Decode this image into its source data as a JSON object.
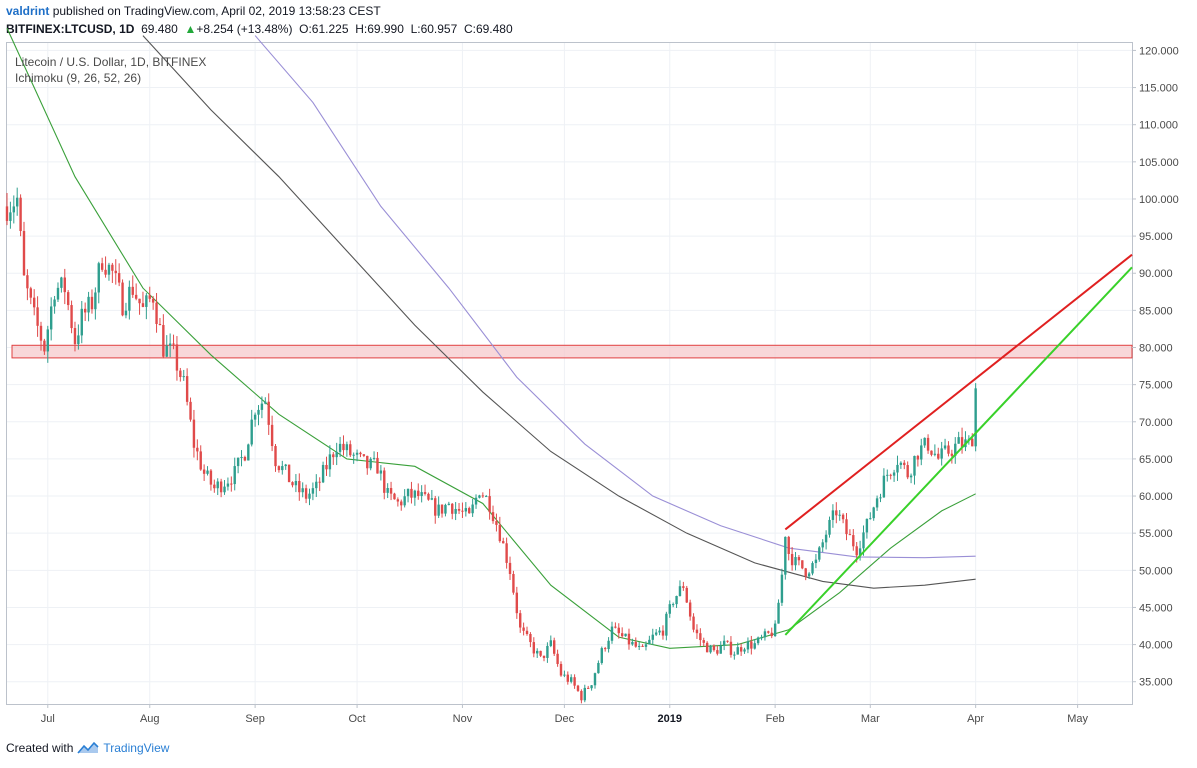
{
  "header": {
    "user": "valdrint",
    "published": "published on TradingView.com, April 02, 2019 13:58:23 CEST",
    "symbol": "BITFINEX:LTCUSD, 1D",
    "last": "69.480",
    "change": "+8.254 (+13.48%)",
    "ohlc_o": "O:61.225",
    "ohlc_h": "H:69.990",
    "ohlc_l": "L:60.957",
    "ohlc_c": "C:69.480"
  },
  "legend": {
    "title": "Litecoin / U.S. Dollar, 1D, BITFINEX",
    "indicator": "Ichimoku (9, 26, 52, 26)"
  },
  "footer": {
    "created_with": "Created with",
    "brand": "TradingView"
  },
  "colors": {
    "up": "#2e9e8e",
    "down": "#e04a4a",
    "ma_green": "#3aa03a",
    "ma_dark": "#555555",
    "ma_purple": "#9a8fd6",
    "zone_fill": "#f6c9cc",
    "zone_stroke": "#e04040",
    "channel_top": "#e02020",
    "channel_bottom": "#39d12a"
  },
  "chart_data": {
    "type": "candlestick",
    "y_axis": {
      "min": 32,
      "max": 121,
      "ticks": [
        35,
        40,
        45,
        50,
        55,
        60,
        65,
        70,
        75,
        80,
        85,
        90,
        95,
        100,
        105,
        110,
        115,
        120
      ],
      "tick_labels": [
        "35.000",
        "40.000",
        "45.000",
        "50.000",
        "55.000",
        "60.000",
        "65.000",
        "70.000",
        "75.000",
        "80.000",
        "85.000",
        "90.000",
        "95.000",
        "100.000",
        "105.000",
        "110.000",
        "115.000",
        "120.000"
      ]
    },
    "x_axis": {
      "start_day": 0,
      "end_day": 331,
      "labels": [
        "Jul",
        "Aug",
        "Sep",
        "Oct",
        "Nov",
        "Dec",
        "2019",
        "Feb",
        "Mar",
        "Apr",
        "May"
      ],
      "label_days": [
        12,
        42,
        73,
        103,
        134,
        164,
        195,
        226,
        254,
        285,
        315
      ]
    },
    "price_path": [
      [
        0,
        99
      ],
      [
        3,
        100
      ],
      [
        5,
        89
      ],
      [
        8,
        84
      ],
      [
        11,
        80
      ],
      [
        14,
        88
      ],
      [
        17,
        88
      ],
      [
        20,
        81
      ],
      [
        22,
        84
      ],
      [
        25,
        86
      ],
      [
        28,
        92
      ],
      [
        31,
        90
      ],
      [
        34,
        86
      ],
      [
        37,
        88
      ],
      [
        40,
        85
      ],
      [
        43,
        87
      ],
      [
        46,
        80
      ],
      [
        49,
        79
      ],
      [
        52,
        75
      ],
      [
        55,
        67
      ],
      [
        58,
        63
      ],
      [
        61,
        61
      ],
      [
        64,
        62
      ],
      [
        67,
        63
      ],
      [
        70,
        66
      ],
      [
        73,
        72
      ],
      [
        76,
        73
      ],
      [
        79,
        65
      ],
      [
        82,
        63
      ],
      [
        85,
        61
      ],
      [
        88,
        60
      ],
      [
        91,
        61
      ],
      [
        94,
        64
      ],
      [
        97,
        67
      ],
      [
        100,
        66
      ],
      [
        103,
        65
      ],
      [
        106,
        64
      ],
      [
        109,
        64
      ],
      [
        112,
        60
      ],
      [
        115,
        59
      ],
      [
        118,
        60
      ],
      [
        121,
        60
      ],
      [
        124,
        59
      ],
      [
        127,
        58
      ],
      [
        130,
        59
      ],
      [
        133,
        58
      ],
      [
        136,
        57
      ],
      [
        139,
        61
      ],
      [
        142,
        59
      ],
      [
        145,
        55
      ],
      [
        148,
        50
      ],
      [
        151,
        42
      ],
      [
        154,
        40
      ],
      [
        157,
        38
      ],
      [
        160,
        40
      ],
      [
        163,
        36
      ],
      [
        166,
        35
      ],
      [
        169,
        33
      ],
      [
        172,
        35
      ],
      [
        175,
        39
      ],
      [
        178,
        42
      ],
      [
        181,
        41
      ],
      [
        184,
        40
      ],
      [
        187,
        39
      ],
      [
        190,
        41
      ],
      [
        193,
        42
      ],
      [
        196,
        46
      ],
      [
        199,
        48
      ],
      [
        202,
        42
      ],
      [
        205,
        40
      ],
      [
        208,
        39
      ],
      [
        211,
        40
      ],
      [
        214,
        39
      ],
      [
        217,
        40
      ],
      [
        220,
        40
      ],
      [
        223,
        41
      ],
      [
        226,
        42
      ],
      [
        229,
        53
      ],
      [
        232,
        51
      ],
      [
        235,
        50
      ],
      [
        238,
        51
      ],
      [
        241,
        55
      ],
      [
        244,
        58
      ],
      [
        247,
        55
      ],
      [
        250,
        53
      ],
      [
        253,
        56
      ],
      [
        256,
        60
      ],
      [
        259,
        63
      ],
      [
        262,
        65
      ],
      [
        265,
        63
      ],
      [
        268,
        66
      ],
      [
        271,
        67
      ],
      [
        274,
        65
      ],
      [
        277,
        66
      ],
      [
        280,
        67
      ],
      [
        283,
        67
      ],
      [
        285,
        69
      ]
    ],
    "ma_green": [
      [
        0,
        123
      ],
      [
        20,
        103
      ],
      [
        40,
        88
      ],
      [
        60,
        79
      ],
      [
        80,
        71
      ],
      [
        100,
        65
      ],
      [
        120,
        64
      ],
      [
        140,
        59
      ],
      [
        160,
        48
      ],
      [
        180,
        41
      ],
      [
        195,
        39.5
      ],
      [
        215,
        40
      ],
      [
        230,
        42
      ],
      [
        245,
        47
      ],
      [
        260,
        53
      ],
      [
        275,
        58
      ],
      [
        285,
        60.3
      ]
    ],
    "ma_dark": [
      [
        40,
        122
      ],
      [
        60,
        112
      ],
      [
        80,
        103
      ],
      [
        100,
        93
      ],
      [
        120,
        83
      ],
      [
        140,
        74
      ],
      [
        160,
        66
      ],
      [
        180,
        60
      ],
      [
        200,
        55
      ],
      [
        220,
        51
      ],
      [
        240,
        48.5
      ],
      [
        255,
        47.6
      ],
      [
        270,
        48
      ],
      [
        285,
        48.8
      ]
    ],
    "ma_purple": [
      [
        73,
        122
      ],
      [
        90,
        113
      ],
      [
        110,
        99
      ],
      [
        130,
        88
      ],
      [
        150,
        76
      ],
      [
        170,
        67
      ],
      [
        190,
        60
      ],
      [
        210,
        56
      ],
      [
        230,
        53
      ],
      [
        250,
        51.8
      ],
      [
        270,
        51.7
      ],
      [
        285,
        51.9
      ]
    ],
    "resistance_zone": [
      78.6,
      80.3
    ],
    "channel_top": [
      [
        229,
        55.5
      ],
      [
        331,
        92.5
      ]
    ],
    "channel_bottom": [
      [
        229,
        41.3
      ],
      [
        331,
        90.8
      ]
    ]
  }
}
